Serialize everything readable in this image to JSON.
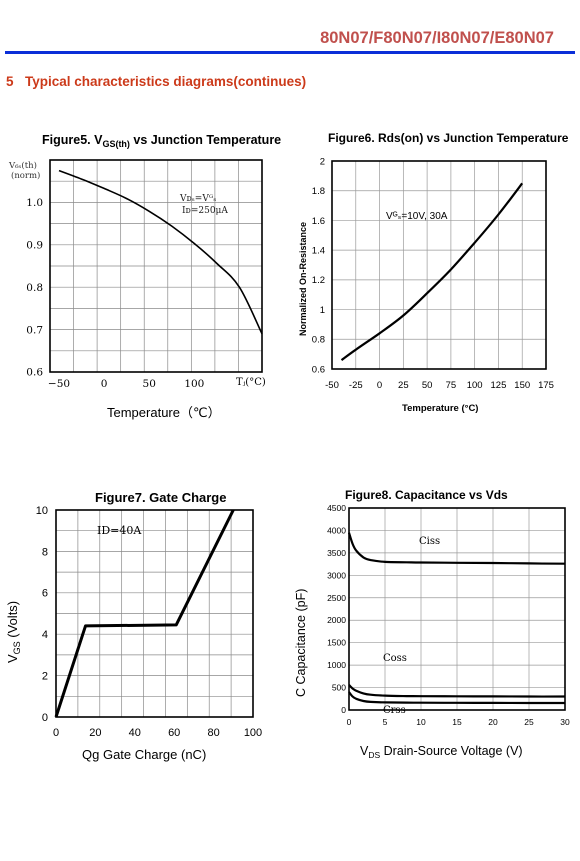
{
  "header": {
    "part_numbers": "80N07/F80N07/I80N07/E80N07",
    "rule_color": "#0b2fd8",
    "part_color": "#c0504d"
  },
  "section": {
    "number": "5",
    "title": "Typical characteristics diagrams(continues)",
    "color": "#cc3a1a"
  },
  "chart_data": [
    {
      "id": "fig5",
      "type": "line",
      "title_prefix": "Figure5. V",
      "title_sub": "GS(th)",
      "title_suffix": " vs Junction Temperature",
      "ylabel_line1": "V₆ₛ(th)",
      "ylabel_line2": "(norm)",
      "xlabel": "Temperature（℃）",
      "x_unit_label": "Tⱼ(°C)",
      "annotation_line1": "Vᴅₛ=Vᴳₛ",
      "annotation_line2": "Iᴅ=250μA",
      "xlim": [
        -60,
        175
      ],
      "ylim": [
        0.6,
        1.1
      ],
      "xticks": [
        -50,
        0,
        50,
        100
      ],
      "xtick_labels": [
        "−50",
        "0",
        "50",
        "100"
      ],
      "yticks": [
        0.6,
        0.7,
        0.8,
        0.9,
        1.0
      ],
      "ytick_labels": [
        "0.6",
        "0.7",
        "0.8",
        "0.9",
        "1.0"
      ],
      "grid": true,
      "series": [
        {
          "x": [
            -50,
            -25,
            0,
            25,
            50,
            75,
            100,
            125,
            150,
            175
          ],
          "y": [
            1.075,
            1.055,
            1.033,
            1.009,
            0.979,
            0.944,
            0.903,
            0.856,
            0.8,
            0.69
          ]
        }
      ]
    },
    {
      "id": "fig6",
      "type": "line",
      "title": "Figure6. Rds(on) vs Junction Temperature",
      "ylabel": "Normalized On-Resistance",
      "xlabel": "Temperature (°C)",
      "annotation": "Vᴳₛ=10V, 30A",
      "xlim": [
        -50,
        175
      ],
      "ylim": [
        0.6,
        2.0
      ],
      "xticks": [
        -50,
        -25,
        0,
        25,
        50,
        75,
        100,
        125,
        150,
        175
      ],
      "xtick_labels": [
        "-50",
        "-25",
        "0",
        "25",
        "50",
        "75",
        "100",
        "125",
        "150",
        "175"
      ],
      "yticks": [
        0.6,
        0.8,
        1.0,
        1.2,
        1.4,
        1.6,
        1.8,
        2.0
      ],
      "ytick_labels": [
        "0.6",
        "0.8",
        "1",
        "1.2",
        "1.4",
        "1.6",
        "1.8",
        "2"
      ],
      "grid": true,
      "series": [
        {
          "x": [
            -40,
            -25,
            0,
            25,
            50,
            75,
            100,
            125,
            150
          ],
          "y": [
            0.66,
            0.73,
            0.84,
            0.96,
            1.11,
            1.27,
            1.45,
            1.64,
            1.85
          ]
        }
      ]
    },
    {
      "id": "fig7",
      "type": "line",
      "title": "Figure7. Gate Charge",
      "ylabel_main": "V",
      "ylabel_sub": "GS",
      "ylabel_rest": " (Volts)",
      "xlabel": "Qg Gate Charge (nC)",
      "annotation": "ID=40A",
      "xlim": [
        0,
        100
      ],
      "ylim": [
        0,
        10
      ],
      "xticks": [
        0,
        20,
        40,
        60,
        80,
        100
      ],
      "xtick_labels": [
        "0",
        "20",
        "40",
        "60",
        "80",
        "100"
      ],
      "yticks": [
        0,
        2,
        4,
        6,
        8,
        10
      ],
      "ytick_labels": [
        "0",
        "2",
        "4",
        "6",
        "8",
        "10"
      ],
      "grid": true,
      "series": [
        {
          "x": [
            0,
            15,
            61,
            90
          ],
          "y": [
            0,
            4.4,
            4.45,
            10
          ]
        }
      ]
    },
    {
      "id": "fig8",
      "type": "line",
      "title": "Figure8. Capacitance vs Vds",
      "ylabel": "C Capacitance (pF)",
      "xlabel_main": "V",
      "xlabel_sub": "DS",
      "xlabel_rest": " Drain-Source Voltage (V)",
      "xlim": [
        0,
        30
      ],
      "ylim": [
        0,
        4500
      ],
      "xticks": [
        0,
        5,
        10,
        15,
        20,
        25,
        30
      ],
      "xtick_labels": [
        "0",
        "5",
        "10",
        "15",
        "20",
        "25",
        "30"
      ],
      "yticks": [
        0,
        500,
        1000,
        1500,
        2000,
        2500,
        3000,
        3500,
        4000,
        4500
      ],
      "ytick_labels": [
        "0",
        "500",
        "1000",
        "1500",
        "2000",
        "2500",
        "3000",
        "3500",
        "4000",
        "4500"
      ],
      "grid": true,
      "series": [
        {
          "name": "Ciss",
          "x": [
            0,
            0.5,
            1,
            2,
            3,
            5,
            8,
            10,
            15,
            20,
            25,
            30
          ],
          "y": [
            3950,
            3700,
            3550,
            3400,
            3340,
            3300,
            3290,
            3285,
            3280,
            3275,
            3265,
            3260
          ]
        },
        {
          "name": "Coss",
          "x": [
            0,
            0.5,
            1,
            2,
            3,
            5,
            8,
            10,
            15,
            20,
            25,
            30
          ],
          "y": [
            560,
            480,
            430,
            370,
            340,
            320,
            310,
            308,
            305,
            303,
            300,
            300
          ]
        },
        {
          "name": "Crss",
          "x": [
            0,
            0.5,
            1,
            2,
            3,
            5,
            8,
            10,
            15,
            20,
            25,
            30
          ],
          "y": [
            400,
            300,
            250,
            200,
            180,
            170,
            165,
            162,
            160,
            158,
            156,
            155
          ]
        }
      ]
    }
  ]
}
